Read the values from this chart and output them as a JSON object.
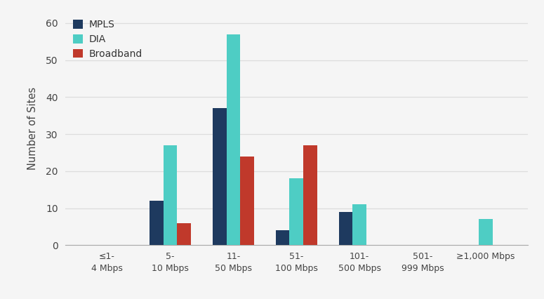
{
  "categories": [
    "≤1-\n4 Mbps",
    "5-\n10 Mbps",
    "11-\n50 Mbps",
    "51-\n100 Mbps",
    "101-\n500 Mbps",
    "501-\n999 Mbps",
    "≥1,000 Mbps"
  ],
  "mpls": [
    0,
    12,
    37,
    4,
    9,
    0,
    0
  ],
  "dia": [
    0,
    27,
    57,
    18,
    11,
    0,
    7
  ],
  "broadband": [
    0,
    6,
    24,
    27,
    0,
    0,
    0
  ],
  "mpls_color": "#1e3a5f",
  "dia_color": "#4ecdc4",
  "broadband_color": "#c0392b",
  "ylabel": "Number of Sites",
  "ylim": [
    0,
    63
  ],
  "yticks": [
    0,
    10,
    20,
    30,
    40,
    50,
    60
  ],
  "legend_labels": [
    "MPLS",
    "DIA",
    "Broadband"
  ],
  "background_color": "#f5f5f5",
  "grid_color": "#dddddd",
  "bar_width": 0.22
}
